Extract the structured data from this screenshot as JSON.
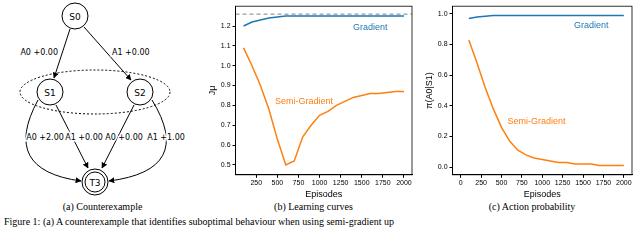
{
  "figure_caption": "Figure 1: (a) A counterexample that identifies suboptimal behaviour when using semi-gradient up",
  "diagram": {
    "caption": "(a) Counterexample",
    "nodes": [
      {
        "label": "S0"
      },
      {
        "label": "S1"
      },
      {
        "label": "S2"
      },
      {
        "label": "T3",
        "terminal": true
      }
    ],
    "group": [
      "S1",
      "S2"
    ],
    "edges": [
      {
        "from": "S0",
        "to": "S1",
        "label": "A0 +0.00"
      },
      {
        "from": "S0",
        "to": "S2",
        "label": "A1 +0.00"
      },
      {
        "from": "S1",
        "to": "T3",
        "label": "A0 +2.00"
      },
      {
        "from": "S1",
        "to": "T3",
        "label": "A1 +0.00"
      },
      {
        "from": "S2",
        "to": "T3",
        "label": "A0 +0.00"
      },
      {
        "from": "S2",
        "to": "T3",
        "label": "A1 +1.00"
      }
    ]
  },
  "chart_data": [
    {
      "type": "line",
      "caption": "(b) Learning curves",
      "x_label": "Episodes",
      "y_label": "Jμ",
      "xlim": [
        5,
        2095
      ],
      "xticks": [
        250,
        500,
        750,
        1000,
        1250,
        1500,
        1750,
        2000
      ],
      "ylim": [
        0.45,
        1.3
      ],
      "yticks": [
        0.5,
        0.6,
        0.7,
        0.8,
        0.9,
        {
          "value": 1,
          "label": "1.0"
        },
        1.1,
        1.2
      ],
      "grid": false,
      "x": [
        100,
        200,
        300,
        400,
        500,
        600,
        700,
        800,
        900,
        1000,
        1100,
        1200,
        1300,
        1400,
        1500,
        1600,
        1700,
        1800,
        1900,
        2000
      ],
      "series": [
        {
          "name": "Gradient",
          "color": "#1f77b4",
          "values": [
            1.2,
            1.22,
            1.23,
            1.24,
            1.245,
            1.25,
            1.25,
            1.25,
            1.25,
            1.25,
            1.25,
            1.25,
            1.25,
            1.25,
            1.25,
            1.25,
            1.25,
            1.25,
            1.25,
            1.25
          ]
        },
        {
          "name": "Semi-Gradient",
          "color": "#ff7f0e",
          "values": [
            1.09,
            1.0,
            0.9,
            0.78,
            0.63,
            0.5,
            0.52,
            0.64,
            0.7,
            0.75,
            0.77,
            0.8,
            0.82,
            0.84,
            0.85,
            0.86,
            0.86,
            0.865,
            0.87,
            0.87
          ]
        }
      ],
      "reference_line": {
        "value": 1.26,
        "color": "#808080",
        "line_style": "dashed"
      }
    },
    {
      "type": "line",
      "caption": "(c) Action probability",
      "x_label": "Episodes",
      "y_label": "π(A0|S1)",
      "xlim": [
        -100,
        2100
      ],
      "xticks": [
        0,
        250,
        500,
        750,
        1000,
        1250,
        1500,
        1750,
        2000
      ],
      "ylim": [
        -0.05,
        1.05
      ],
      "yticks": [
        {
          "value": 0,
          "label": "0.0"
        },
        0.2,
        0.4,
        0.6,
        0.8,
        {
          "value": 1,
          "label": "1.0"
        }
      ],
      "grid": false,
      "x": [
        100,
        200,
        300,
        400,
        500,
        600,
        700,
        800,
        900,
        1000,
        1100,
        1200,
        1300,
        1400,
        1500,
        1600,
        1700,
        1800,
        1900,
        2000
      ],
      "series": [
        {
          "name": "Gradient",
          "color": "#1f77b4",
          "values": [
            0.97,
            0.98,
            0.985,
            0.99,
            0.99,
            0.99,
            0.99,
            0.99,
            0.99,
            0.99,
            0.99,
            0.99,
            0.99,
            0.99,
            0.99,
            0.99,
            0.99,
            0.99,
            0.99,
            0.99
          ]
        },
        {
          "name": "Semi-Gradient",
          "color": "#ff7f0e",
          "values": [
            0.83,
            0.68,
            0.52,
            0.38,
            0.26,
            0.17,
            0.11,
            0.08,
            0.06,
            0.05,
            0.04,
            0.03,
            0.03,
            0.02,
            0.02,
            0.02,
            0.01,
            0.01,
            0.01,
            0.01
          ]
        }
      ]
    }
  ]
}
